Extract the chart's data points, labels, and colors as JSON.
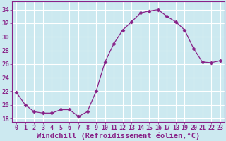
{
  "x": [
    0,
    1,
    2,
    3,
    4,
    5,
    6,
    7,
    8,
    9,
    10,
    11,
    12,
    13,
    14,
    15,
    16,
    17,
    18,
    19,
    20,
    21,
    22,
    23
  ],
  "y": [
    21.8,
    20.0,
    19.0,
    18.8,
    18.8,
    19.3,
    19.3,
    18.3,
    19.0,
    22.0,
    26.3,
    29.0,
    31.0,
    32.2,
    33.5,
    33.8,
    34.0,
    33.0,
    32.2,
    31.0,
    28.3,
    26.3,
    26.2,
    26.5
  ],
  "line_color": "#882288",
  "marker": "D",
  "marker_size": 2.5,
  "xlabel": "Windchill (Refroidissement éolien,°C)",
  "xlabel_fontsize": 7.5,
  "ylabel_ticks": [
    18,
    20,
    22,
    24,
    26,
    28,
    30,
    32,
    34
  ],
  "xtick_labels": [
    "0",
    "1",
    "2",
    "3",
    "4",
    "5",
    "6",
    "7",
    "8",
    "9",
    "10",
    "11",
    "12",
    "13",
    "14",
    "15",
    "16",
    "17",
    "18",
    "19",
    "20",
    "21",
    "22",
    "23"
  ],
  "ylim": [
    17.5,
    35.2
  ],
  "xlim": [
    -0.5,
    23.5
  ],
  "bg_color": "#cce9f0",
  "grid_color": "#ffffff",
  "tick_color": "#882288",
  "font_color": "#882288",
  "tick_fontsize": 6.0,
  "ytick_fontsize": 6.5
}
